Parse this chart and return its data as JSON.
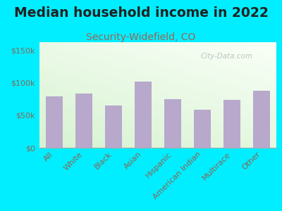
{
  "title": "Median household income in 2022",
  "subtitle": "Security-Widefield, CO",
  "categories": [
    "All",
    "White",
    "Black",
    "Asian",
    "Hispanic",
    "American Indian",
    "Multirace",
    "Other"
  ],
  "values": [
    79000,
    83000,
    65000,
    101000,
    74000,
    58000,
    73000,
    87000
  ],
  "bar_color": "#b8a8cc",
  "background_outer": "#00eeff",
  "title_color": "#222222",
  "subtitle_color": "#996655",
  "tick_label_color": "#886655",
  "ytick_labels": [
    "$0",
    "$50k",
    "$100k",
    "$150k"
  ],
  "ytick_values": [
    0,
    50000,
    100000,
    150000
  ],
  "ylim": [
    0,
    162000
  ],
  "watermark": "City-Data.com",
  "title_fontsize": 13.5,
  "subtitle_fontsize": 10,
  "tick_fontsize": 8
}
